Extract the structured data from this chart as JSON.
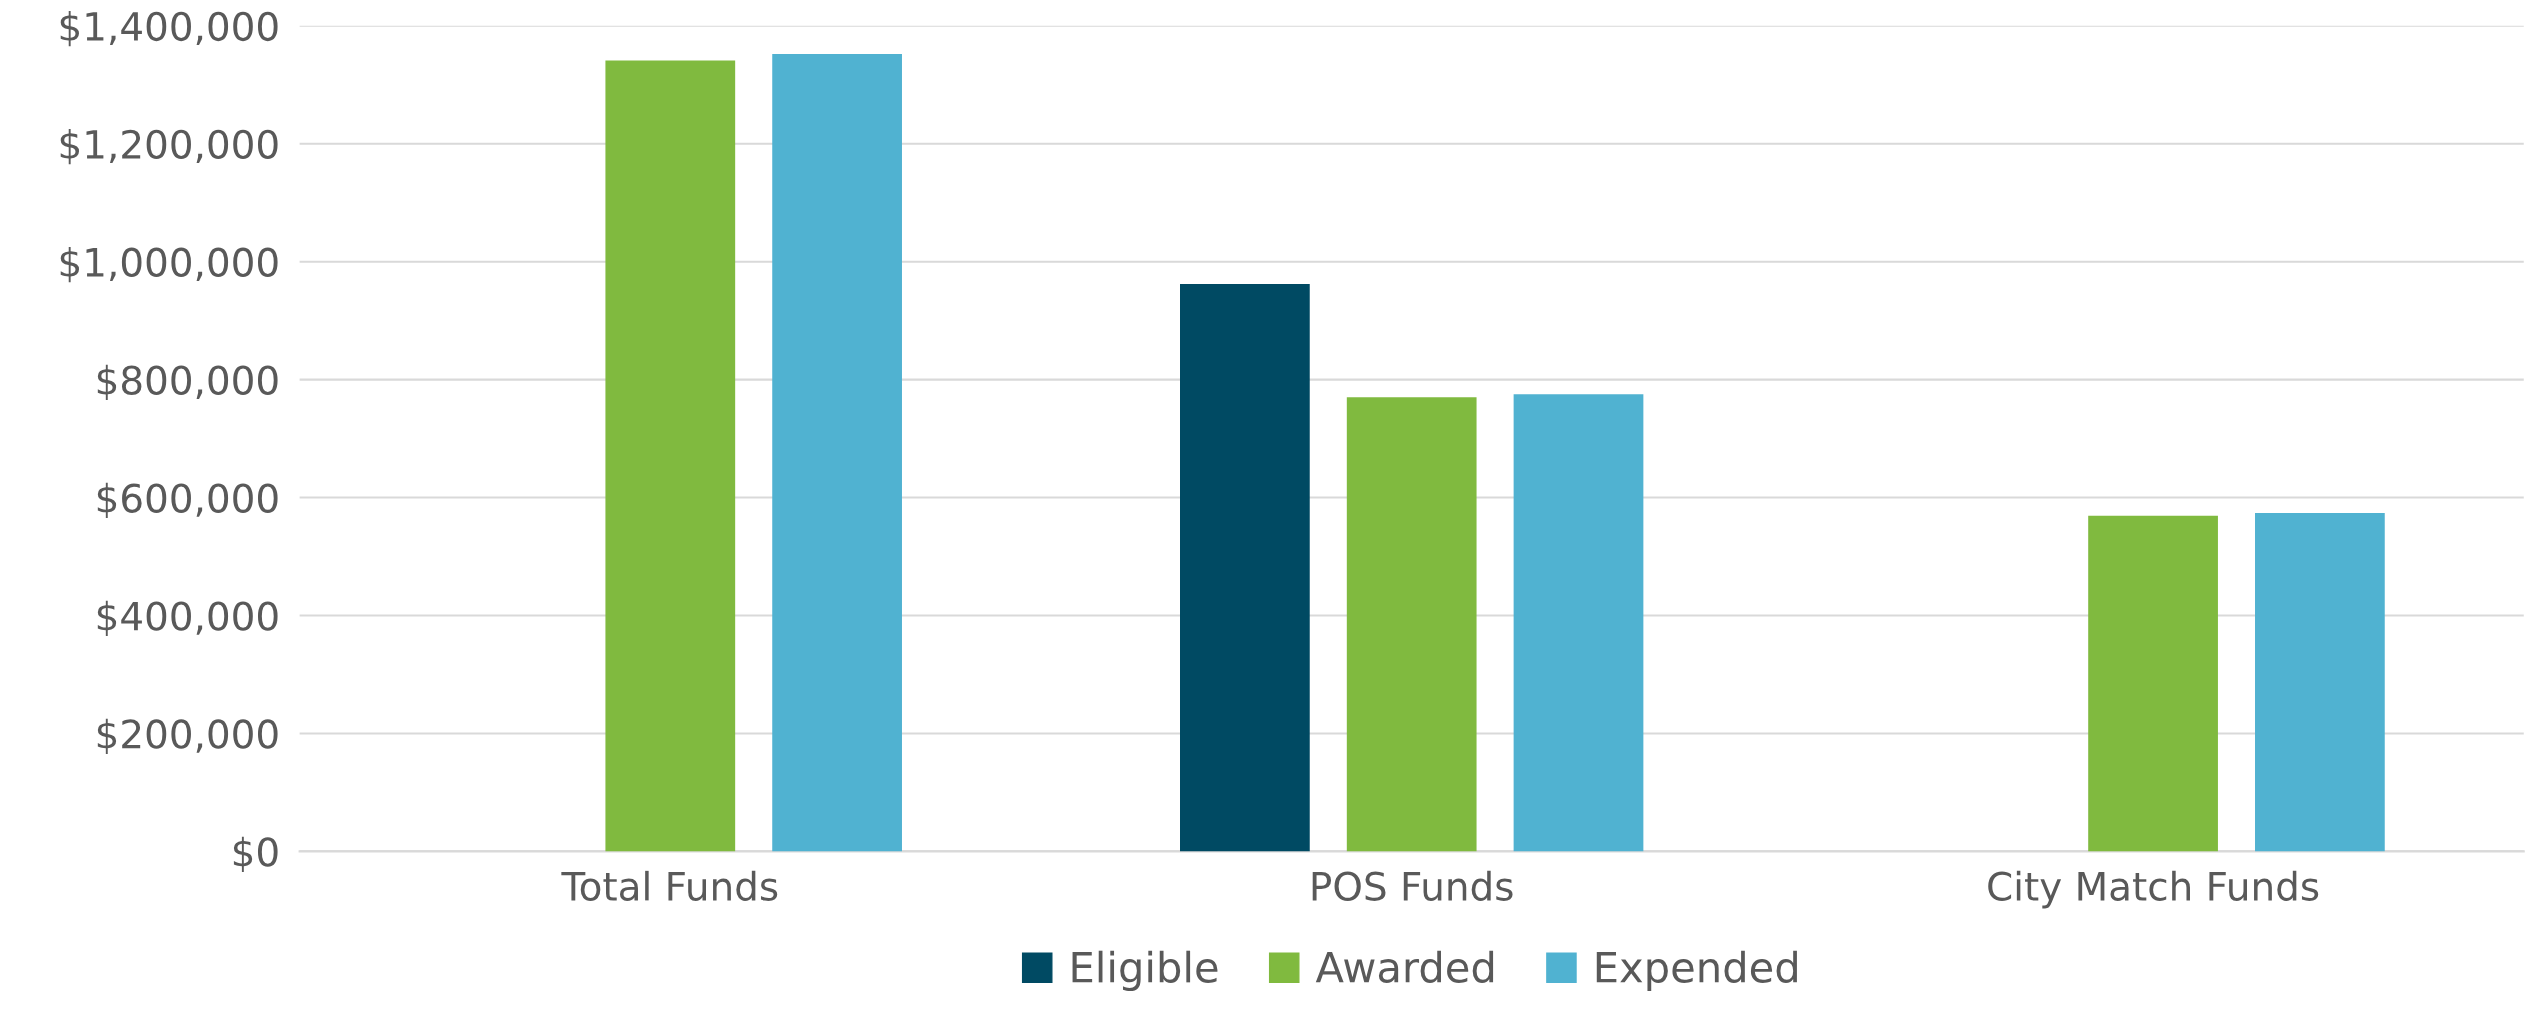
{
  "chart_data": {
    "type": "bar",
    "categories": [
      "Total Funds",
      "POS Funds",
      "City Match Funds"
    ],
    "series": [
      {
        "name": "Eligible",
        "color": "#004a63",
        "values": [
          null,
          962000,
          null
        ]
      },
      {
        "name": "Awarded",
        "color": "#80ba3f",
        "values": [
          1341000,
          770000,
          569000
        ]
      },
      {
        "name": "Expended",
        "color": "#50b2d1",
        "values": [
          1352000,
          775000,
          574000
        ]
      }
    ],
    "ylim": [
      0,
      1400000
    ],
    "yticks": [
      {
        "value": 0,
        "label": "$0"
      },
      {
        "value": 200000,
        "label": "$200,000"
      },
      {
        "value": 400000,
        "label": "$400,000"
      },
      {
        "value": 600000,
        "label": "$600,000"
      },
      {
        "value": 800000,
        "label": "$800,000"
      },
      {
        "value": 1000000,
        "label": "$1,000,000"
      },
      {
        "value": 1200000,
        "label": "$1,200,000"
      },
      {
        "value": 1400000,
        "label": "$1,400,000"
      }
    ],
    "grid": "y",
    "legend": "bottom"
  }
}
